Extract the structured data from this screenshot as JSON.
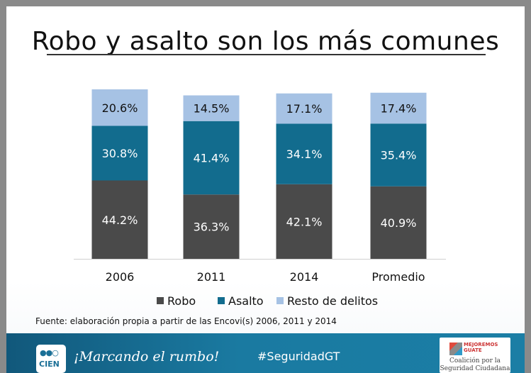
{
  "slide": {
    "title": "Robo y asalto son los más comunes",
    "source": "Fuente: elaboración propia a partir de las Encovi(s) 2006, 2011 y 2014"
  },
  "chart_data": {
    "type": "bar",
    "stacked": true,
    "categories": [
      "2006",
      "2011",
      "2014",
      "Promedio"
    ],
    "series": [
      {
        "name": "Robo",
        "color": "#4a4a4a",
        "values": [
          44.2,
          36.3,
          42.1,
          40.9
        ],
        "labels": [
          "44.2%",
          "36.3%",
          "42.1%",
          "40.9%"
        ]
      },
      {
        "name": "Asalto",
        "color": "#126c8e",
        "values": [
          30.8,
          41.4,
          34.1,
          35.4
        ],
        "labels": [
          "30.8%",
          "41.4%",
          "34.1%",
          "35.4%"
        ]
      },
      {
        "name": "Resto de delitos",
        "color": "#a6c2e4",
        "values": [
          20.6,
          14.5,
          17.1,
          17.4
        ],
        "labels": [
          "20.6%",
          "14.5%",
          "17.1%",
          "17.4%"
        ]
      }
    ],
    "legend_position": "bottom",
    "ylim": [
      0,
      100
    ]
  },
  "footer": {
    "logo_text": "CIEN",
    "tagline": "¡Marcando el rumbo!",
    "hashtag": "#SeguridadGT",
    "partner_small_line1": "MEJOREMOS",
    "partner_small_line2": "GUATE",
    "partner_line1": "Coalición por la",
    "partner_line2": "Seguridad Ciudadana"
  }
}
